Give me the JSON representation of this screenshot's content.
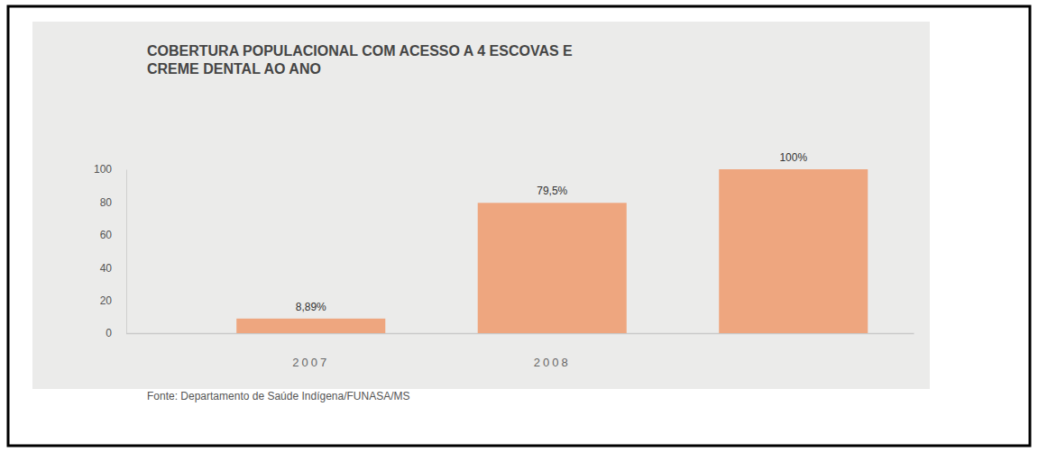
{
  "chart_data": {
    "type": "bar",
    "title": "COBERTURA POPULACIONAL COM ACESSO A 4 ESCOVAS E CREME DENTAL AO ANO",
    "categories": [
      "2007",
      "2008",
      null
    ],
    "values": [
      8.89,
      79.5,
      100
    ],
    "value_labels": [
      "8,89%",
      "79,5%",
      "100%"
    ],
    "data_labels": true,
    "color": "#eea67f",
    "ylim": [
      0,
      100
    ],
    "yticks": [
      0,
      20,
      40,
      60,
      80,
      100
    ],
    "grid": false,
    "source": "Fonte: Departamento de Saúde Indígena/FUNASA/MS"
  }
}
